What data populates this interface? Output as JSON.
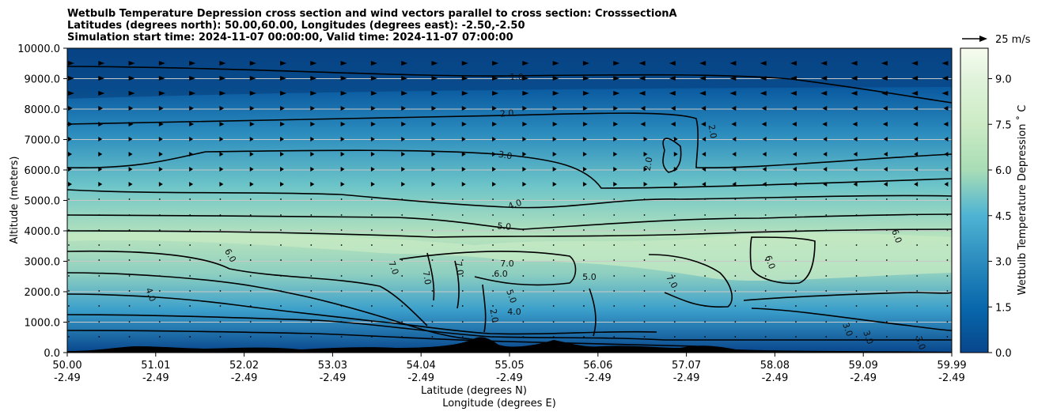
{
  "chart_data": {
    "type": "heatmap",
    "title_lines": [
      "Wetbulb Temperature Depression cross section and wind vectors parallel to cross section: CrosssectionA",
      "Latitudes (degrees north): 50.00,60.00, Longitudes (degrees east): -2.50,-2.50",
      "Simulation start time: 2024-11-07 00:00:00, Valid time: 2024-11-07 07:00:00"
    ],
    "ylabel": "Altitude (meters)",
    "xlabel_lat": "Latitude (degrees N)",
    "xlabel_lon": "Longitude (degrees E)",
    "ylim": [
      0,
      10000
    ],
    "yticks": [
      "0.0",
      "1000.0",
      "2000.0",
      "3000.0",
      "4000.0",
      "5000.0",
      "6000.0",
      "7000.0",
      "8000.0",
      "9000.0",
      "10000.0"
    ],
    "xticks_lat": [
      "50.00",
      "51.01",
      "52.02",
      "53.03",
      "54.04",
      "55.05",
      "56.06",
      "57.07",
      "58.08",
      "59.09",
      "59.99"
    ],
    "xticks_lon": [
      "-2.49",
      "-2.49",
      "-2.49",
      "-2.49",
      "-2.49",
      "-2.49",
      "-2.49",
      "-2.49",
      "-2.49",
      "-2.49",
      "-2.49"
    ],
    "colorbar_label": "Wetbulb Temperature Depression ˚ C",
    "colorbar_range": [
      0,
      10
    ],
    "colorbar_ticks": [
      "0.0",
      "1.5",
      "3.0",
      "4.5",
      "6.0",
      "7.5",
      "9.0"
    ],
    "quiver_key_label": "25 m/s",
    "contour_levels": [
      "1.0",
      "2.0",
      "3.0",
      "4.0",
      "5.0",
      "6.0",
      "7.0"
    ],
    "contour_labels": [
      "1.0",
      "2.0",
      "2.0",
      "2.0",
      "3.0",
      "4.0",
      "5.0",
      "6.0",
      "6.0",
      "6.0",
      "7.0",
      "7.0",
      "7.0",
      "7.0",
      "7.0",
      "5.0",
      "6.0",
      "5.0",
      "4.0",
      "2.0",
      "4.0",
      "3.0",
      "3.0",
      "3.0"
    ],
    "colors": {
      "dark": "#08468c",
      "mid": "#2b8cbe",
      "light": "#a8ddb5",
      "pale": "#f7fcf0"
    }
  }
}
